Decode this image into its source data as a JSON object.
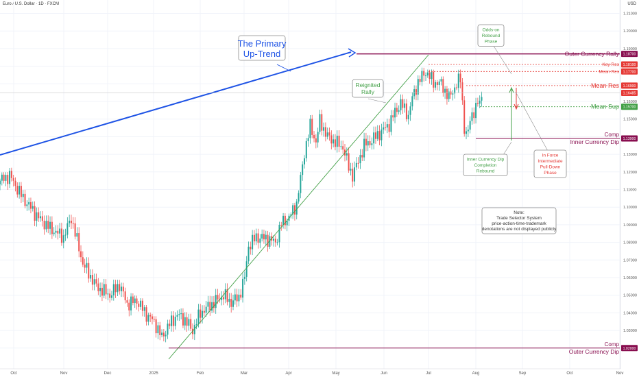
{
  "symbol_title": "Euro / U.S. Dollar · 1D · FXCM",
  "currency": "USD",
  "colors": {
    "bull": "#26a69a",
    "bear": "#ef5350",
    "trend_blue": "#1e53e5",
    "green": "#43a047",
    "red": "#e53935",
    "maroon": "#880e4f"
  },
  "chart_data": {
    "type": "candlestick",
    "x_ticks": [
      "Oct",
      "Nov",
      "Dec",
      "2025",
      "Feb",
      "Mar",
      "Apr",
      "May",
      "Jun",
      "Jul",
      "Aug",
      "Sep",
      "Oct",
      "Nov"
    ],
    "y_ticks": [
      1.21,
      1.2,
      1.19,
      1.18,
      1.17,
      1.16,
      1.15,
      1.14,
      1.13,
      1.12,
      1.11,
      1.1,
      1.09,
      1.08,
      1.07,
      1.06,
      1.05,
      1.04,
      1.03,
      1.02
    ],
    "ylim": [
      1.018,
      1.215
    ],
    "close_anchors": [
      [
        0,
        1.115
      ],
      [
        5,
        1.118
      ],
      [
        12,
        1.105
      ],
      [
        20,
        1.094
      ],
      [
        26,
        1.088
      ],
      [
        33,
        1.083
      ],
      [
        37,
        1.094
      ],
      [
        43,
        1.068
      ],
      [
        50,
        1.055
      ],
      [
        57,
        1.05
      ],
      [
        62,
        1.056
      ],
      [
        66,
        1.045
      ],
      [
        71,
        1.047
      ],
      [
        76,
        1.039
      ],
      [
        80,
        1.035
      ],
      [
        84,
        1.026
      ],
      [
        87,
        1.032
      ],
      [
        92,
        1.039
      ],
      [
        96,
        1.036
      ],
      [
        100,
        1.03
      ],
      [
        104,
        1.04
      ],
      [
        110,
        1.045
      ],
      [
        116,
        1.05
      ],
      [
        120,
        1.046
      ],
      [
        124,
        1.049
      ],
      [
        127,
        1.06
      ],
      [
        129,
        1.078
      ],
      [
        133,
        1.083
      ],
      [
        139,
        1.082
      ],
      [
        143,
        1.08
      ],
      [
        146,
        1.091
      ],
      [
        150,
        1.094
      ],
      [
        154,
        1.102
      ],
      [
        156,
        1.116
      ],
      [
        158,
        1.131
      ],
      [
        161,
        1.146
      ],
      [
        164,
        1.137
      ],
      [
        166,
        1.149
      ],
      [
        170,
        1.14
      ],
      [
        174,
        1.137
      ],
      [
        178,
        1.134
      ],
      [
        181,
        1.123
      ],
      [
        183,
        1.118
      ],
      [
        186,
        1.126
      ],
      [
        189,
        1.135
      ],
      [
        192,
        1.137
      ],
      [
        196,
        1.141
      ],
      [
        199,
        1.144
      ],
      [
        202,
        1.147
      ],
      [
        205,
        1.154
      ],
      [
        208,
        1.159
      ],
      [
        212,
        1.152
      ],
      [
        214,
        1.162
      ],
      [
        217,
        1.171
      ],
      [
        221,
        1.177
      ],
      [
        225,
        1.171
      ],
      [
        229,
        1.17
      ],
      [
        233,
        1.162
      ],
      [
        236,
        1.168
      ],
      [
        239,
        1.173
      ],
      [
        240,
        1.16
      ],
      [
        241,
        1.144
      ],
      [
        243,
        1.141
      ],
      [
        244,
        1.151
      ],
      [
        247,
        1.156
      ],
      [
        250,
        1.163
      ]
    ],
    "levels": [
      {
        "name": "Outer Currency Rally",
        "value": 1.187
      },
      {
        "name": "Key Res",
        "value": 1.181
      },
      {
        "name": "Mean Res",
        "value": 1.177
      },
      {
        "name": "Mean Res",
        "value": 1.169
      },
      {
        "name": "Current Price",
        "value": 1.16485
      },
      {
        "name": "Mean Sup",
        "value": 1.157
      },
      {
        "name": "Comp / Inner Currency Dip",
        "value": 1.139
      },
      {
        "name": "Comp / Outer Currency Dip",
        "value": 1.02
      }
    ],
    "level_tags": [
      "1.18700",
      "1.18100",
      "1.17700",
      "1.16900",
      "1.16485",
      "1.15700",
      "1.13900",
      "1.02000"
    ],
    "annotations": {
      "primary_trend": [
        "The Primary",
        "Up-Trend"
      ],
      "reignited": [
        "Reignited",
        "Rally"
      ],
      "odds_on": [
        "Odds-on",
        "Rebound",
        "Phase"
      ],
      "inner_dip_rebound": [
        "Inner Currency Dip",
        "Completion",
        "Rebound"
      ],
      "pull_down": [
        "In Force",
        "Intermediate",
        "Pull-Down",
        "Phase"
      ],
      "note": [
        "Note:",
        "Trade Selector System",
        "price-action-time-trademark",
        "denotations are not displayed publicly"
      ],
      "outer_rally": "Outer Currency Rally",
      "key_res": "Key Res",
      "mean_res_small": "Mean Res",
      "mean_res": "Mean Res",
      "mean_sup": "Mean Sup",
      "comp": "Comp",
      "inner_dip": "Inner Currency Dip",
      "outer_dip": "Outer Currency Dip"
    }
  }
}
